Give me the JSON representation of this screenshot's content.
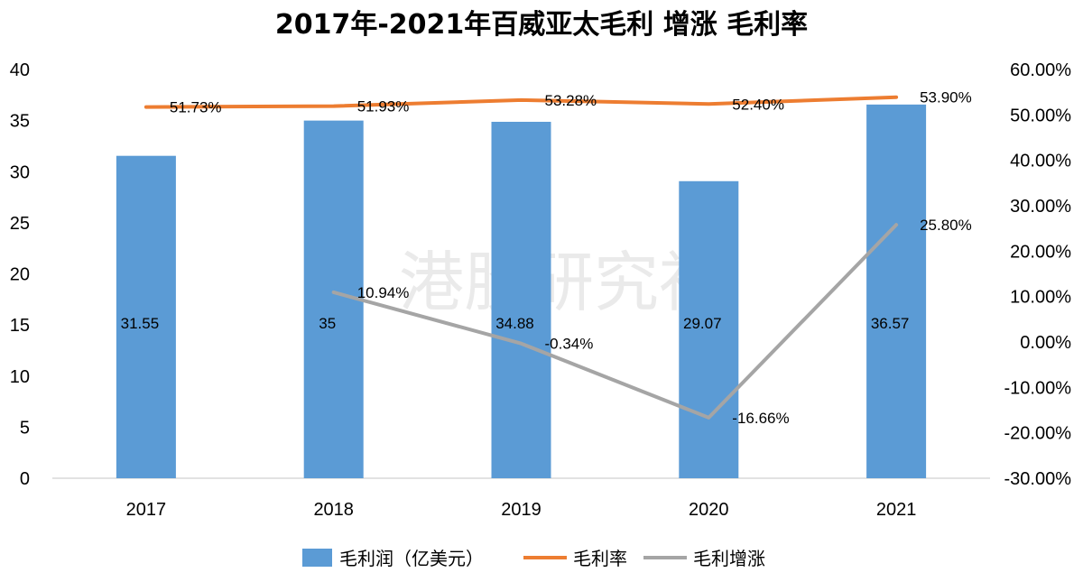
{
  "chart_data": {
    "type": "bar",
    "title": "2017年-2021年百威亚太毛利 增涨 毛利率",
    "categories": [
      "2017",
      "2018",
      "2019",
      "2020",
      "2021"
    ],
    "y_left": {
      "ylim": [
        0,
        40
      ],
      "ticks": [
        "0",
        "5",
        "10",
        "15",
        "20",
        "25",
        "30",
        "35",
        "40"
      ]
    },
    "y_right": {
      "ylim": [
        -30,
        60
      ],
      "ticks": [
        "-30.00%",
        "-20.00%",
        "-10.00%",
        "0.00%",
        "10.00%",
        "20.00%",
        "30.00%",
        "40.00%",
        "50.00%",
        "60.00%"
      ]
    },
    "series": [
      {
        "name": "毛利润（亿美元）",
        "type": "bar",
        "axis": "left",
        "color": "#5b9bd5",
        "values": [
          31.55,
          35,
          34.88,
          29.07,
          36.57
        ],
        "labels": [
          "31.55",
          "35",
          "34.88",
          "29.07",
          "36.57"
        ]
      },
      {
        "name": "毛利率",
        "type": "line",
        "axis": "right",
        "color": "#ed7d31",
        "values": [
          51.73,
          51.93,
          53.28,
          52.4,
          53.9
        ],
        "labels": [
          "51.73%",
          "51.93%",
          "53.28%",
          "52.40%",
          "53.90%"
        ]
      },
      {
        "name": "毛利增涨",
        "type": "line",
        "axis": "right",
        "color": "#a5a5a5",
        "values": [
          null,
          10.94,
          -0.34,
          -16.66,
          25.8
        ],
        "labels": [
          null,
          "10.94%",
          "-0.34%",
          "-16.66%",
          "25.80%"
        ]
      }
    ],
    "grid": false,
    "legend_position": "bottom"
  },
  "watermark": "港股研究社"
}
